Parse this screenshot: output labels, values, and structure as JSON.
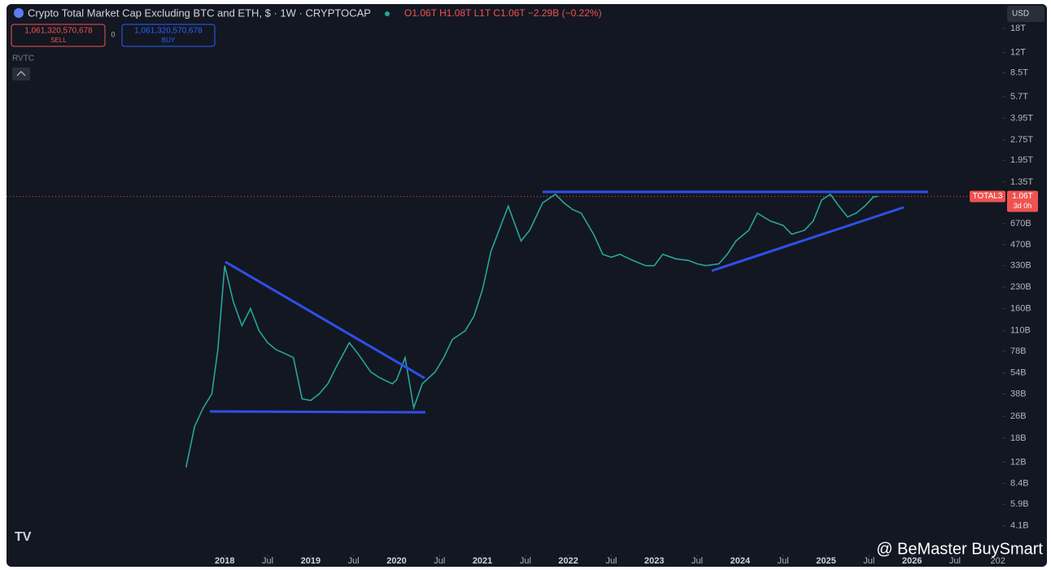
{
  "header": {
    "title": "Crypto Total Market Cap Excluding BTC and ETH, $ · 1W · CRYPTOCAP",
    "ohlc": "O1.06T H1.08T L1T C1.06T −2.29B (−0.22%)",
    "sell_price": "1,061,320,570,678",
    "sell_label": "SELL",
    "spread": "0",
    "buy_price": "1,061,320,570,678",
    "buy_label": "BUY",
    "indicator": "RVTC",
    "currency": "USD"
  },
  "watermark": "@ BeMaster BuySmart",
  "chart_data": {
    "type": "line",
    "log_scale": true,
    "symbol": "TOTAL3",
    "countdown": "3d 0h",
    "last_price": {
      "value": 1060000000000.0,
      "label": "1.06T"
    },
    "xlim": [
      2015.46,
      2027.05
    ],
    "ylim": [
      2600000000.0,
      27000000000000.0
    ],
    "xticks": [
      2018,
      {
        "value": 2018.5,
        "label": "Jul"
      },
      2019,
      {
        "value": 2019.5,
        "label": "Jul"
      },
      2020,
      {
        "value": 2020.5,
        "label": "Jul"
      },
      2021,
      {
        "value": 2021.5,
        "label": "Jul"
      },
      2022,
      {
        "value": 2022.5,
        "label": "Jul"
      },
      2023,
      {
        "value": 2023.5,
        "label": "Jul"
      },
      2024,
      {
        "value": 2024.5,
        "label": "Jul"
      },
      2025,
      {
        "value": 2025.5,
        "label": "Jul"
      },
      2026,
      {
        "value": 2026.5,
        "label": "Jul"
      },
      {
        "value": 2027,
        "label": "202"
      }
    ],
    "yticks": [
      {
        "value": 18000000000000.0,
        "label": "18T"
      },
      {
        "value": 12000000000000.0,
        "label": "12T"
      },
      {
        "value": 8500000000000.0,
        "label": "8.5T"
      },
      {
        "value": 5700000000000.0,
        "label": "5.7T"
      },
      {
        "value": 3950000000000.0,
        "label": "3.95T"
      },
      {
        "value": 2750000000000.0,
        "label": "2.75T"
      },
      {
        "value": 1950000000000.0,
        "label": "1.95T"
      },
      {
        "value": 1350000000000.0,
        "label": "1.35T"
      },
      {
        "value": 670000000000.0,
        "label": "670B"
      },
      {
        "value": 470000000000.0,
        "label": "470B"
      },
      {
        "value": 330000000000.0,
        "label": "330B"
      },
      {
        "value": 230000000000.0,
        "label": "230B"
      },
      {
        "value": 160000000000.0,
        "label": "160B"
      },
      {
        "value": 110000000000.0,
        "label": "110B"
      },
      {
        "value": 78000000000.0,
        "label": "78B"
      },
      {
        "value": 54000000000.0,
        "label": "54B"
      },
      {
        "value": 38000000000.0,
        "label": "38B"
      },
      {
        "value": 26000000000.0,
        "label": "26B"
      },
      {
        "value": 18000000000.0,
        "label": "18B"
      },
      {
        "value": 12000000000.0,
        "label": "12B"
      },
      {
        "value": 8400000000.0,
        "label": "8.4B"
      },
      {
        "value": 5900000000.0,
        "label": "5.9B"
      },
      {
        "value": 4100000000.0,
        "label": "4.1B"
      }
    ],
    "series": [
      {
        "name": "TOTAL3",
        "color": "#26a69a",
        "x": [
          2017.55,
          2017.65,
          2017.75,
          2017.85,
          2017.92,
          2018.0,
          2018.1,
          2018.2,
          2018.3,
          2018.4,
          2018.5,
          2018.6,
          2018.7,
          2018.8,
          2018.9,
          2019.0,
          2019.1,
          2019.2,
          2019.3,
          2019.45,
          2019.55,
          2019.7,
          2019.8,
          2019.95,
          2020.0,
          2020.1,
          2020.2,
          2020.3,
          2020.45,
          2020.55,
          2020.65,
          2020.8,
          2020.9,
          2021.0,
          2021.1,
          2021.3,
          2021.45,
          2021.55,
          2021.7,
          2021.85,
          2021.95,
          2022.05,
          2022.15,
          2022.3,
          2022.4,
          2022.5,
          2022.6,
          2022.75,
          2022.9,
          2023.0,
          2023.1,
          2023.25,
          2023.4,
          2023.5,
          2023.6,
          2023.75,
          2023.85,
          2023.95,
          2024.1,
          2024.2,
          2024.35,
          2024.5,
          2024.6,
          2024.75,
          2024.85,
          2024.95,
          2025.05,
          2025.15,
          2025.25,
          2025.35,
          2025.45,
          2025.55,
          2025.6
        ],
        "values": [
          11000000000.0,
          22000000000.0,
          30000000000.0,
          38000000000.0,
          80000000000.0,
          330000000000.0,
          180000000000.0,
          120000000000.0,
          160000000000.0,
          110000000000.0,
          90000000000.0,
          80000000000.0,
          75000000000.0,
          70000000000.0,
          35000000000.0,
          34000000000.0,
          38000000000.0,
          45000000000.0,
          60000000000.0,
          90000000000.0,
          75000000000.0,
          55000000000.0,
          50000000000.0,
          45000000000.0,
          48000000000.0,
          70000000000.0,
          30000000000.0,
          45000000000.0,
          55000000000.0,
          70000000000.0,
          95000000000.0,
          110000000000.0,
          140000000000.0,
          220000000000.0,
          420000000000.0,
          900000000000.0,
          500000000000.0,
          600000000000.0,
          950000000000.0,
          1100000000000.0,
          950000000000.0,
          850000000000.0,
          800000000000.0,
          550000000000.0,
          400000000000.0,
          380000000000.0,
          400000000000.0,
          360000000000.0,
          330000000000.0,
          330000000000.0,
          400000000000.0,
          370000000000.0,
          360000000000.0,
          340000000000.0,
          330000000000.0,
          340000000000.0,
          400000000000.0,
          500000000000.0,
          600000000000.0,
          800000000000.0,
          700000000000.0,
          650000000000.0,
          560000000000.0,
          600000000000.0,
          700000000000.0,
          1000000000000.0,
          1100000000000.0,
          900000000000.0,
          750000000000.0,
          800000000000.0,
          900000000000.0,
          1050000000000.0,
          1060000000000.0
        ]
      }
    ]
  }
}
